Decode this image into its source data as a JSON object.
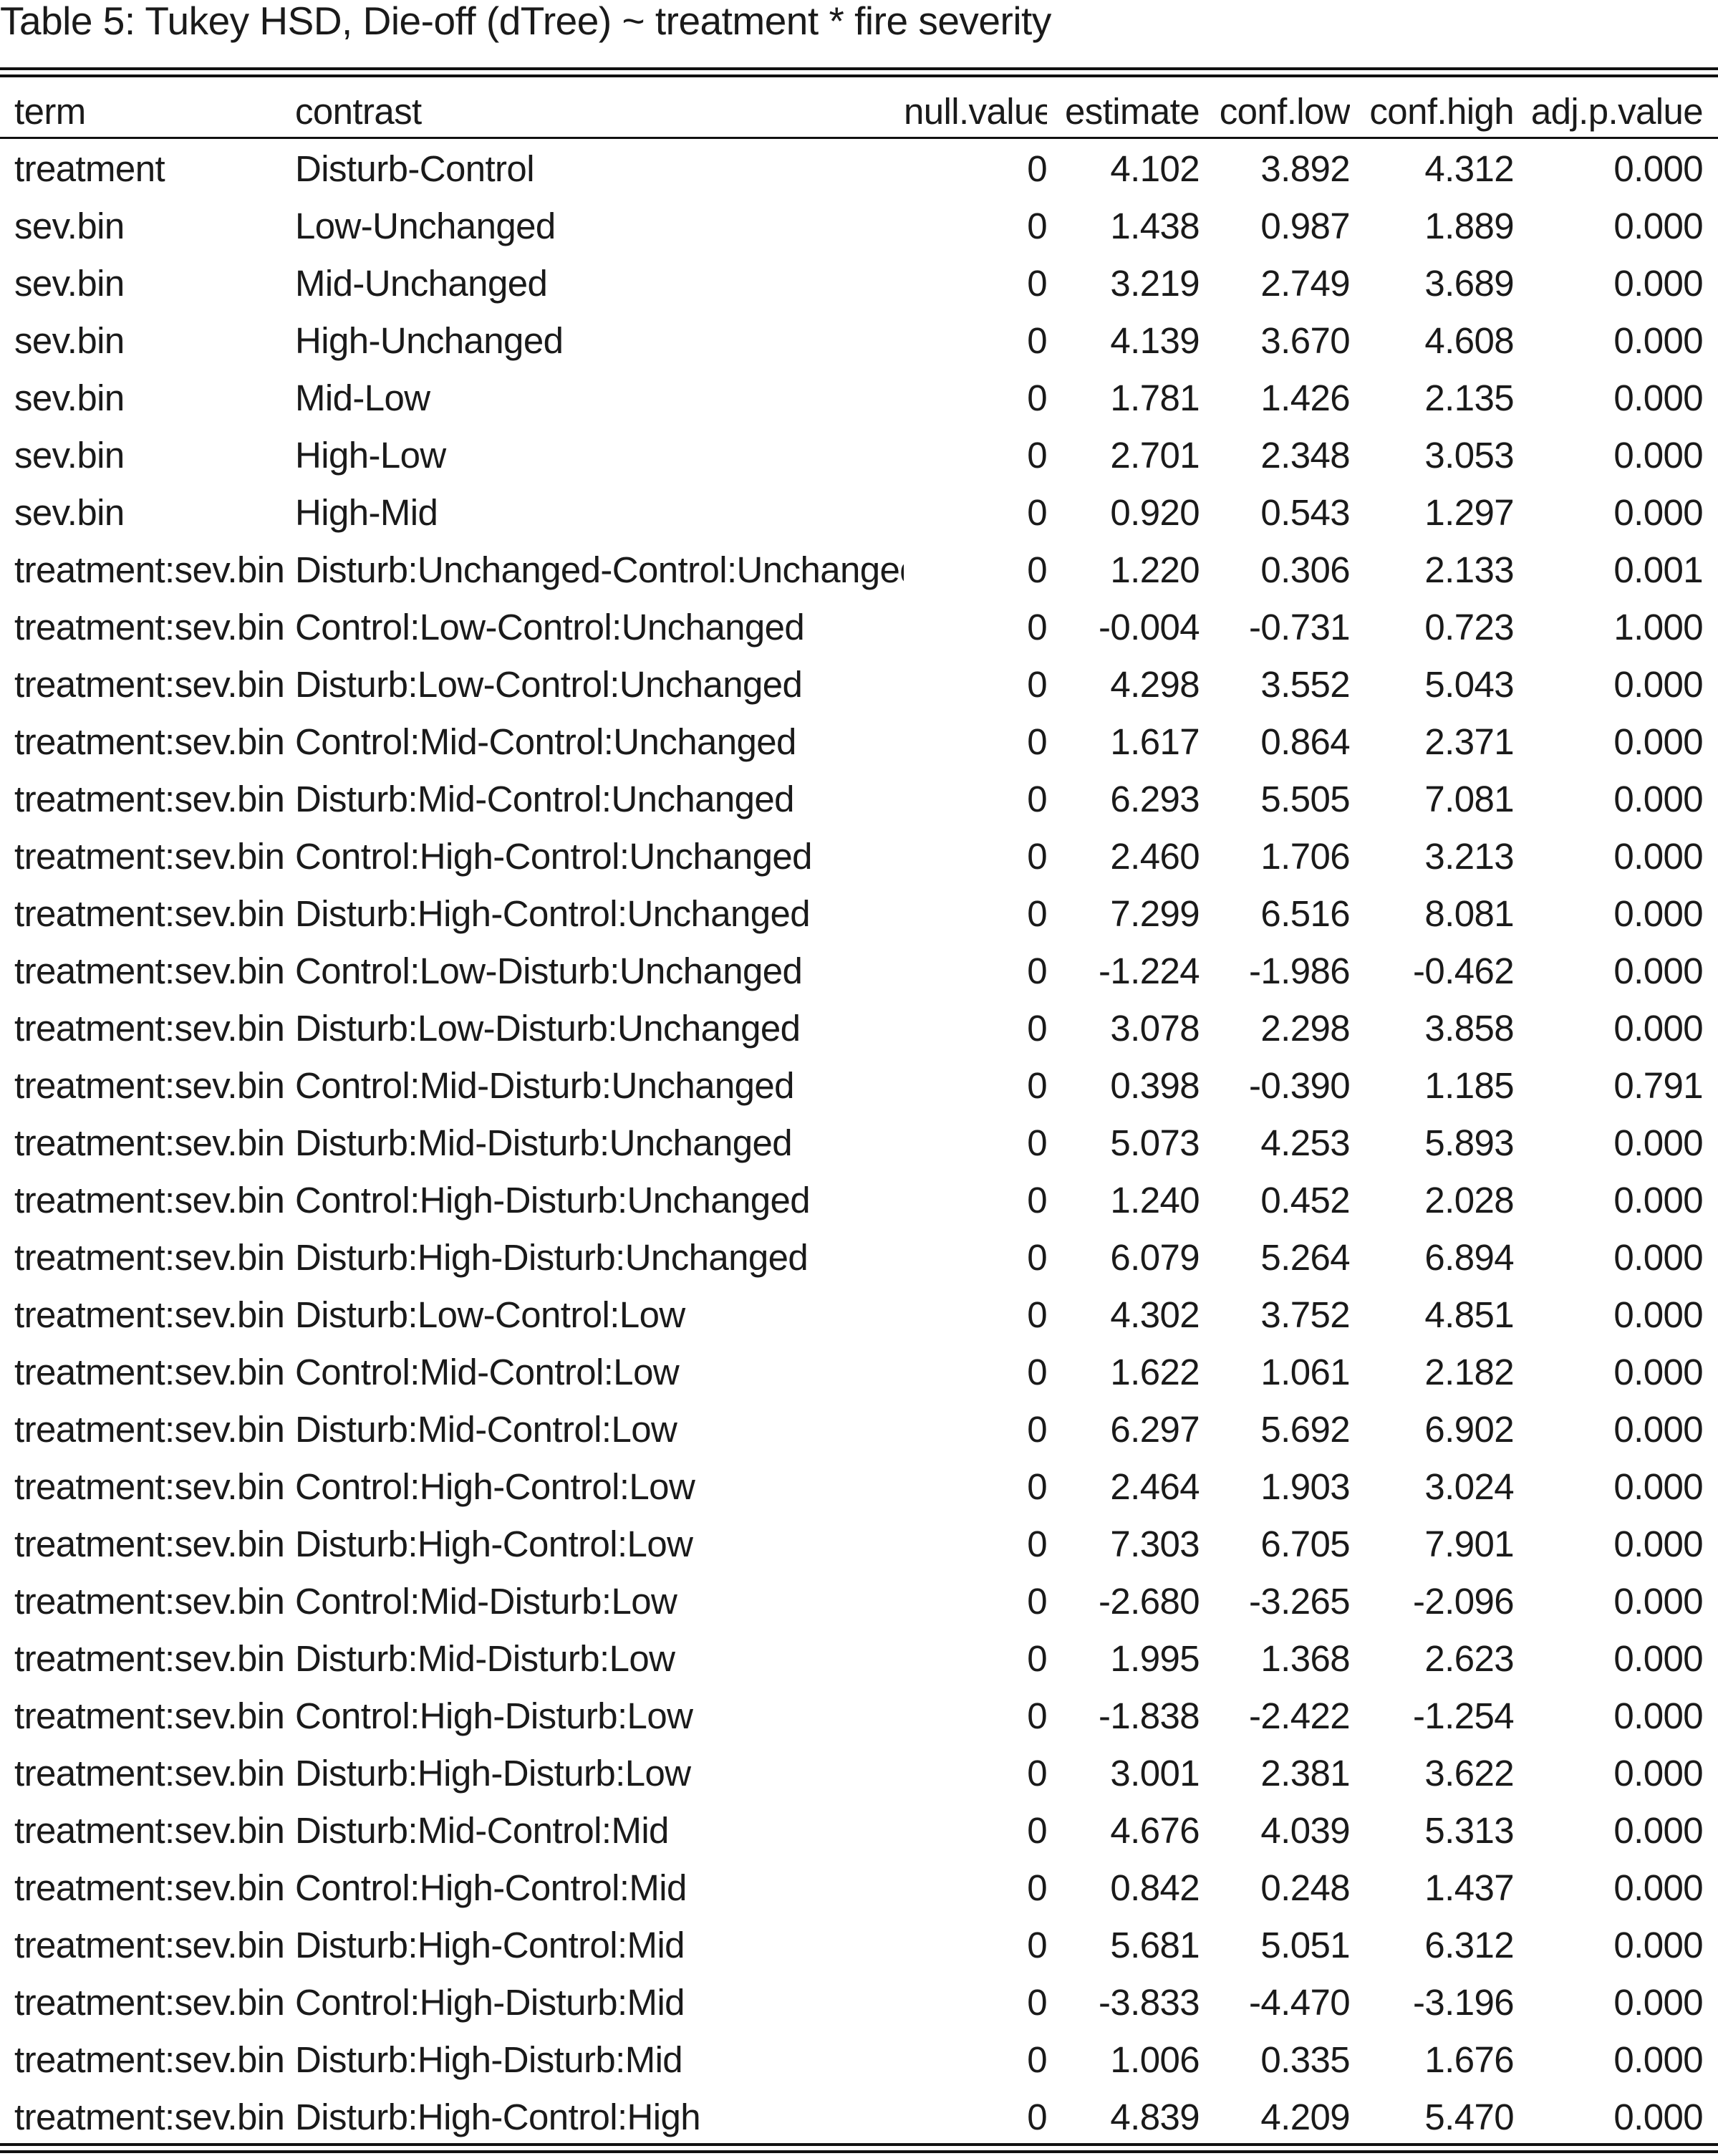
{
  "caption": "Table 5: Tukey HSD, Die-off (dTree) ~ treatment * fire severity",
  "columns": {
    "term": "term",
    "contrast": "contrast",
    "null_value": "null.value",
    "estimate": "estimate",
    "conf_low": "conf.low",
    "conf_high": "conf.high",
    "adj_p_value": "adj.p.value"
  },
  "rows": [
    {
      "term": "treatment",
      "contrast": "Disturb-Control",
      "null_value": "0",
      "estimate": "4.102",
      "conf_low": "3.892",
      "conf_high": "4.312",
      "adj_p_value": "0.000"
    },
    {
      "term": "sev.bin",
      "contrast": "Low-Unchanged",
      "null_value": "0",
      "estimate": "1.438",
      "conf_low": "0.987",
      "conf_high": "1.889",
      "adj_p_value": "0.000"
    },
    {
      "term": "sev.bin",
      "contrast": "Mid-Unchanged",
      "null_value": "0",
      "estimate": "3.219",
      "conf_low": "2.749",
      "conf_high": "3.689",
      "adj_p_value": "0.000"
    },
    {
      "term": "sev.bin",
      "contrast": "High-Unchanged",
      "null_value": "0",
      "estimate": "4.139",
      "conf_low": "3.670",
      "conf_high": "4.608",
      "adj_p_value": "0.000"
    },
    {
      "term": "sev.bin",
      "contrast": "Mid-Low",
      "null_value": "0",
      "estimate": "1.781",
      "conf_low": "1.426",
      "conf_high": "2.135",
      "adj_p_value": "0.000"
    },
    {
      "term": "sev.bin",
      "contrast": "High-Low",
      "null_value": "0",
      "estimate": "2.701",
      "conf_low": "2.348",
      "conf_high": "3.053",
      "adj_p_value": "0.000"
    },
    {
      "term": "sev.bin",
      "contrast": "High-Mid",
      "null_value": "0",
      "estimate": "0.920",
      "conf_low": "0.543",
      "conf_high": "1.297",
      "adj_p_value": "0.000"
    },
    {
      "term": "treatment:sev.bin",
      "contrast": "Disturb:Unchanged-Control:Unchanged",
      "null_value": "0",
      "estimate": "1.220",
      "conf_low": "0.306",
      "conf_high": "2.133",
      "adj_p_value": "0.001"
    },
    {
      "term": "treatment:sev.bin",
      "contrast": "Control:Low-Control:Unchanged",
      "null_value": "0",
      "estimate": "-0.004",
      "conf_low": "-0.731",
      "conf_high": "0.723",
      "adj_p_value": "1.000"
    },
    {
      "term": "treatment:sev.bin",
      "contrast": "Disturb:Low-Control:Unchanged",
      "null_value": "0",
      "estimate": "4.298",
      "conf_low": "3.552",
      "conf_high": "5.043",
      "adj_p_value": "0.000"
    },
    {
      "term": "treatment:sev.bin",
      "contrast": "Control:Mid-Control:Unchanged",
      "null_value": "0",
      "estimate": "1.617",
      "conf_low": "0.864",
      "conf_high": "2.371",
      "adj_p_value": "0.000"
    },
    {
      "term": "treatment:sev.bin",
      "contrast": "Disturb:Mid-Control:Unchanged",
      "null_value": "0",
      "estimate": "6.293",
      "conf_low": "5.505",
      "conf_high": "7.081",
      "adj_p_value": "0.000"
    },
    {
      "term": "treatment:sev.bin",
      "contrast": "Control:High-Control:Unchanged",
      "null_value": "0",
      "estimate": "2.460",
      "conf_low": "1.706",
      "conf_high": "3.213",
      "adj_p_value": "0.000"
    },
    {
      "term": "treatment:sev.bin",
      "contrast": "Disturb:High-Control:Unchanged",
      "null_value": "0",
      "estimate": "7.299",
      "conf_low": "6.516",
      "conf_high": "8.081",
      "adj_p_value": "0.000"
    },
    {
      "term": "treatment:sev.bin",
      "contrast": "Control:Low-Disturb:Unchanged",
      "null_value": "0",
      "estimate": "-1.224",
      "conf_low": "-1.986",
      "conf_high": "-0.462",
      "adj_p_value": "0.000"
    },
    {
      "term": "treatment:sev.bin",
      "contrast": "Disturb:Low-Disturb:Unchanged",
      "null_value": "0",
      "estimate": "3.078",
      "conf_low": "2.298",
      "conf_high": "3.858",
      "adj_p_value": "0.000"
    },
    {
      "term": "treatment:sev.bin",
      "contrast": "Control:Mid-Disturb:Unchanged",
      "null_value": "0",
      "estimate": "0.398",
      "conf_low": "-0.390",
      "conf_high": "1.185",
      "adj_p_value": "0.791"
    },
    {
      "term": "treatment:sev.bin",
      "contrast": "Disturb:Mid-Disturb:Unchanged",
      "null_value": "0",
      "estimate": "5.073",
      "conf_low": "4.253",
      "conf_high": "5.893",
      "adj_p_value": "0.000"
    },
    {
      "term": "treatment:sev.bin",
      "contrast": "Control:High-Disturb:Unchanged",
      "null_value": "0",
      "estimate": "1.240",
      "conf_low": "0.452",
      "conf_high": "2.028",
      "adj_p_value": "0.000"
    },
    {
      "term": "treatment:sev.bin",
      "contrast": "Disturb:High-Disturb:Unchanged",
      "null_value": "0",
      "estimate": "6.079",
      "conf_low": "5.264",
      "conf_high": "6.894",
      "adj_p_value": "0.000"
    },
    {
      "term": "treatment:sev.bin",
      "contrast": "Disturb:Low-Control:Low",
      "null_value": "0",
      "estimate": "4.302",
      "conf_low": "3.752",
      "conf_high": "4.851",
      "adj_p_value": "0.000"
    },
    {
      "term": "treatment:sev.bin",
      "contrast": "Control:Mid-Control:Low",
      "null_value": "0",
      "estimate": "1.622",
      "conf_low": "1.061",
      "conf_high": "2.182",
      "adj_p_value": "0.000"
    },
    {
      "term": "treatment:sev.bin",
      "contrast": "Disturb:Mid-Control:Low",
      "null_value": "0",
      "estimate": "6.297",
      "conf_low": "5.692",
      "conf_high": "6.902",
      "adj_p_value": "0.000"
    },
    {
      "term": "treatment:sev.bin",
      "contrast": "Control:High-Control:Low",
      "null_value": "0",
      "estimate": "2.464",
      "conf_low": "1.903",
      "conf_high": "3.024",
      "adj_p_value": "0.000"
    },
    {
      "term": "treatment:sev.bin",
      "contrast": "Disturb:High-Control:Low",
      "null_value": "0",
      "estimate": "7.303",
      "conf_low": "6.705",
      "conf_high": "7.901",
      "adj_p_value": "0.000"
    },
    {
      "term": "treatment:sev.bin",
      "contrast": "Control:Mid-Disturb:Low",
      "null_value": "0",
      "estimate": "-2.680",
      "conf_low": "-3.265",
      "conf_high": "-2.096",
      "adj_p_value": "0.000"
    },
    {
      "term": "treatment:sev.bin",
      "contrast": "Disturb:Mid-Disturb:Low",
      "null_value": "0",
      "estimate": "1.995",
      "conf_low": "1.368",
      "conf_high": "2.623",
      "adj_p_value": "0.000"
    },
    {
      "term": "treatment:sev.bin",
      "contrast": "Control:High-Disturb:Low",
      "null_value": "0",
      "estimate": "-1.838",
      "conf_low": "-2.422",
      "conf_high": "-1.254",
      "adj_p_value": "0.000"
    },
    {
      "term": "treatment:sev.bin",
      "contrast": "Disturb:High-Disturb:Low",
      "null_value": "0",
      "estimate": "3.001",
      "conf_low": "2.381",
      "conf_high": "3.622",
      "adj_p_value": "0.000"
    },
    {
      "term": "treatment:sev.bin",
      "contrast": "Disturb:Mid-Control:Mid",
      "null_value": "0",
      "estimate": "4.676",
      "conf_low": "4.039",
      "conf_high": "5.313",
      "adj_p_value": "0.000"
    },
    {
      "term": "treatment:sev.bin",
      "contrast": "Control:High-Control:Mid",
      "null_value": "0",
      "estimate": "0.842",
      "conf_low": "0.248",
      "conf_high": "1.437",
      "adj_p_value": "0.000"
    },
    {
      "term": "treatment:sev.bin",
      "contrast": "Disturb:High-Control:Mid",
      "null_value": "0",
      "estimate": "5.681",
      "conf_low": "5.051",
      "conf_high": "6.312",
      "adj_p_value": "0.000"
    },
    {
      "term": "treatment:sev.bin",
      "contrast": "Control:High-Disturb:Mid",
      "null_value": "0",
      "estimate": "-3.833",
      "conf_low": "-4.470",
      "conf_high": "-3.196",
      "adj_p_value": "0.000"
    },
    {
      "term": "treatment:sev.bin",
      "contrast": "Disturb:High-Disturb:Mid",
      "null_value": "0",
      "estimate": "1.006",
      "conf_low": "0.335",
      "conf_high": "1.676",
      "adj_p_value": "0.000"
    },
    {
      "term": "treatment:sev.bin",
      "contrast": "Disturb:High-Control:High",
      "null_value": "0",
      "estimate": "4.839",
      "conf_low": "4.209",
      "conf_high": "5.470",
      "adj_p_value": "0.000"
    }
  ]
}
